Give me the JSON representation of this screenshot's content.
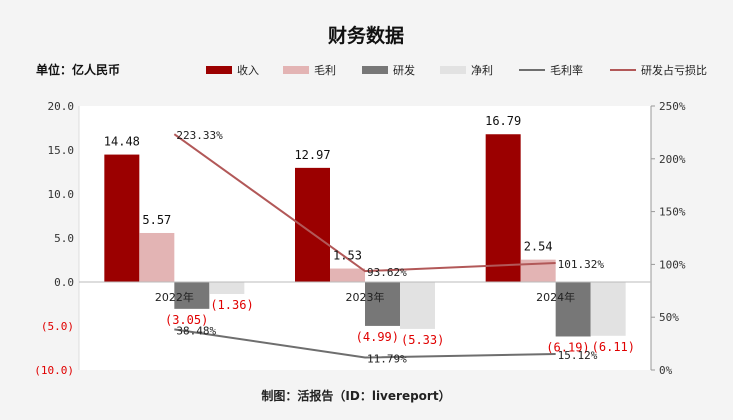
{
  "title": "财务数据",
  "unit_label": "单位：亿人民币",
  "source": "制图：活报告（ID：livereport）",
  "chart_data": {
    "type": "bar",
    "categories": [
      "2022年",
      "2023年",
      "2024年"
    ],
    "series": [
      {
        "name": "收入",
        "kind": "bar",
        "axis": "left",
        "color": "#9b0000",
        "values": [
          14.48,
          12.97,
          16.79
        ],
        "labels": [
          "14.48",
          "12.97",
          "16.79"
        ]
      },
      {
        "name": "毛利",
        "kind": "bar",
        "axis": "left",
        "color": "#e3b4b4",
        "values": [
          5.57,
          1.53,
          2.54
        ],
        "labels": [
          "5.57",
          "1.53",
          "2.54"
        ]
      },
      {
        "name": "研发",
        "kind": "bar",
        "axis": "left",
        "color": "#777777",
        "values": [
          -3.05,
          -4.99,
          -6.19
        ],
        "labels": [
          "(3.05)",
          "(4.99)",
          "(6.19)"
        ]
      },
      {
        "name": "净利",
        "kind": "bar",
        "axis": "left",
        "color": "#e2e2e2",
        "values": [
          -1.36,
          -5.33,
          -6.11
        ],
        "labels": [
          "(1.36)",
          "(5.33)",
          "(6.11)"
        ]
      },
      {
        "name": "毛利率",
        "kind": "line",
        "axis": "right",
        "color": "#6e6e6e",
        "values": [
          38.48,
          11.79,
          15.12
        ],
        "labels": [
          "38.48%",
          "11.79%",
          "15.12%"
        ]
      },
      {
        "name": "研发占亏损比",
        "kind": "line",
        "axis": "right",
        "color": "#b25858",
        "values": [
          223.33,
          93.62,
          101.32
        ],
        "labels": [
          "223.33%",
          "93.62%",
          "101.32%"
        ]
      }
    ],
    "y_left": {
      "range": [
        -10,
        20
      ],
      "ticks": [
        20,
        15,
        10,
        5,
        0,
        -5,
        -10
      ],
      "tick_labels": [
        "20.0",
        "15.0",
        "10.0",
        "5.0",
        "0.0",
        "(5.0)",
        "(10.0)"
      ]
    },
    "y_right": {
      "range": [
        0,
        250
      ],
      "ticks": [
        250,
        200,
        150,
        100,
        50,
        0
      ],
      "tick_labels": [
        "250%",
        "200%",
        "150%",
        "100%",
        "50%",
        "0%"
      ]
    },
    "negative_label_color": "#e00000",
    "legend_position": "top-right",
    "grid": false
  }
}
